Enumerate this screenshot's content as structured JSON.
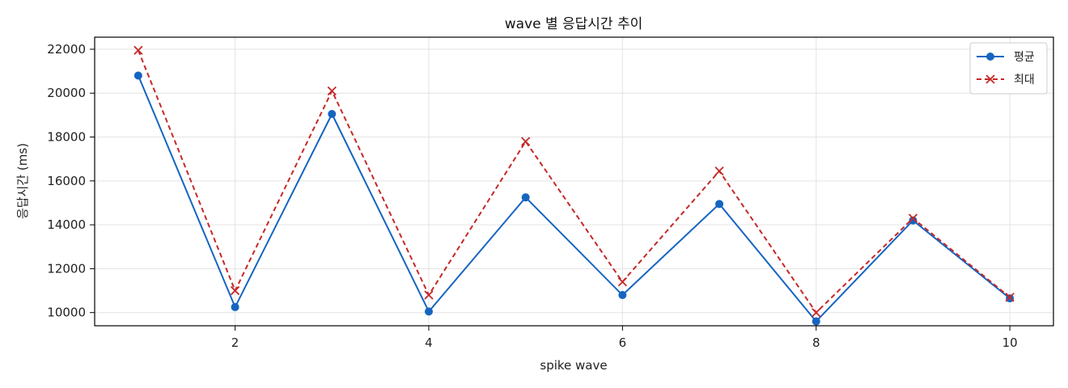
{
  "chart_data": {
    "type": "line",
    "title": "wave 별 응답시간 추이",
    "xlabel": "spike wave",
    "ylabel": "응답시간 (ms)",
    "x": [
      1,
      2,
      3,
      4,
      5,
      6,
      7,
      8,
      9,
      10
    ],
    "xlim": [
      0.55,
      10.45
    ],
    "ylim": [
      9400,
      22550
    ],
    "xticks": [
      2,
      4,
      6,
      8,
      10
    ],
    "yticks": [
      10000,
      12000,
      14000,
      16000,
      18000,
      20000,
      22000
    ],
    "grid": true,
    "legend_position": "top-right",
    "series": [
      {
        "name": "평균",
        "values": [
          20800,
          10250,
          19050,
          10050,
          15250,
          10800,
          14950,
          9600,
          14200,
          10650
        ],
        "color": "#1565c0",
        "line_style": "solid",
        "marker": "circle"
      },
      {
        "name": "최대",
        "values": [
          21950,
          11000,
          20100,
          10800,
          17800,
          11400,
          16450,
          10000,
          14300,
          10700
        ],
        "color": "#c62828",
        "line_style": "dashed",
        "marker": "x"
      }
    ]
  }
}
